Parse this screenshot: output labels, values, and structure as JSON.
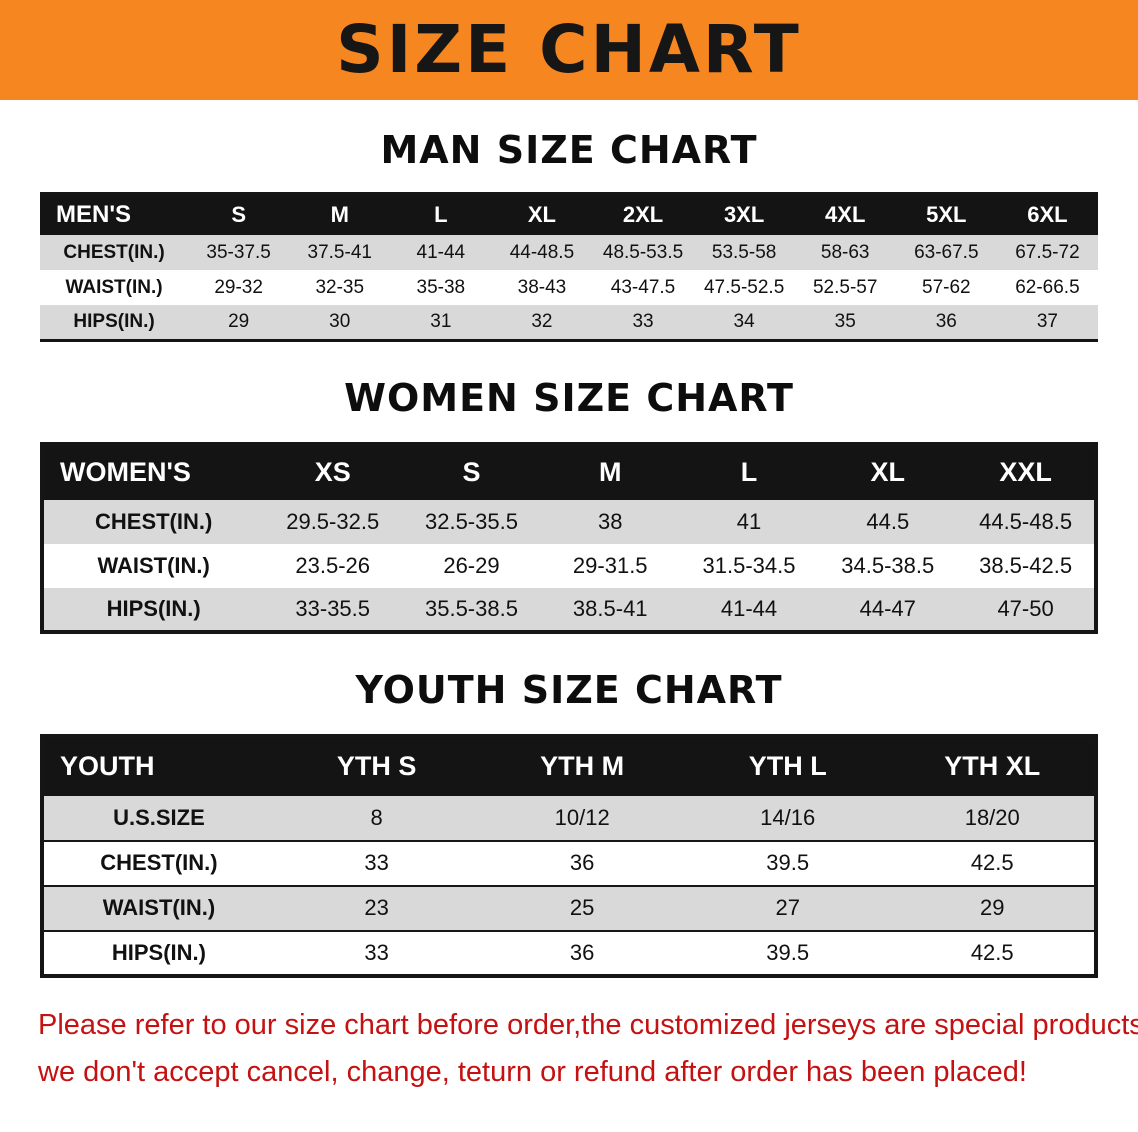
{
  "banner": {
    "title": "SIZE CHART"
  },
  "chart_data": [
    {
      "type": "table",
      "title": "MAN SIZE CHART",
      "columns": [
        "MEN'S",
        "S",
        "M",
        "L",
        "XL",
        "2XL",
        "3XL",
        "4XL",
        "5XL",
        "6XL"
      ],
      "rows": [
        [
          "CHEST(IN.)",
          "35-37.5",
          "37.5-41",
          "41-44",
          "44-48.5",
          "48.5-53.5",
          "53.5-58",
          "58-63",
          "63-67.5",
          "67.5-72"
        ],
        [
          "WAIST(IN.)",
          "29-32",
          "32-35",
          "35-38",
          "38-43",
          "43-47.5",
          "47.5-52.5",
          "52.5-57",
          "57-62",
          "62-66.5"
        ],
        [
          "HIPS(IN.)",
          "29",
          "30",
          "31",
          "32",
          "33",
          "34",
          "35",
          "36",
          "37"
        ]
      ]
    },
    {
      "type": "table",
      "title": "WOMEN SIZE CHART",
      "columns": [
        "WOMEN'S",
        "XS",
        "S",
        "M",
        "L",
        "XL",
        "XXL"
      ],
      "rows": [
        [
          "CHEST(IN.)",
          "29.5-32.5",
          "32.5-35.5",
          "38",
          "41",
          "44.5",
          "44.5-48.5"
        ],
        [
          "WAIST(IN.)",
          "23.5-26",
          "26-29",
          "29-31.5",
          "31.5-34.5",
          "34.5-38.5",
          "38.5-42.5"
        ],
        [
          "HIPS(IN.)",
          "33-35.5",
          "35.5-38.5",
          "38.5-41",
          "41-44",
          "44-47",
          "47-50"
        ]
      ]
    },
    {
      "type": "table",
      "title": "YOUTH SIZE CHART",
      "columns": [
        "YOUTH",
        "YTH S",
        "YTH M",
        "YTH L",
        "YTH XL"
      ],
      "rows": [
        [
          "U.S.SIZE",
          "8",
          "10/12",
          "14/16",
          "18/20"
        ],
        [
          "CHEST(IN.)",
          "33",
          "36",
          "39.5",
          "42.5"
        ],
        [
          "WAIST(IN.)",
          "23",
          "25",
          "27",
          "29"
        ],
        [
          "HIPS(IN.)",
          "33",
          "36",
          "39.5",
          "42.5"
        ]
      ]
    }
  ],
  "disclaimer": {
    "line1": "Please refer to our size chart before order,the customized jerseys are special products,",
    "line2": "we don't accept cancel, change, teturn or refund after order has been placed!"
  },
  "colors": {
    "banner_bg": "#f6861f",
    "table_header_bg": "#141414",
    "row_alt_bg": "#d9d9d9",
    "disclaimer_red": "#c51111"
  }
}
